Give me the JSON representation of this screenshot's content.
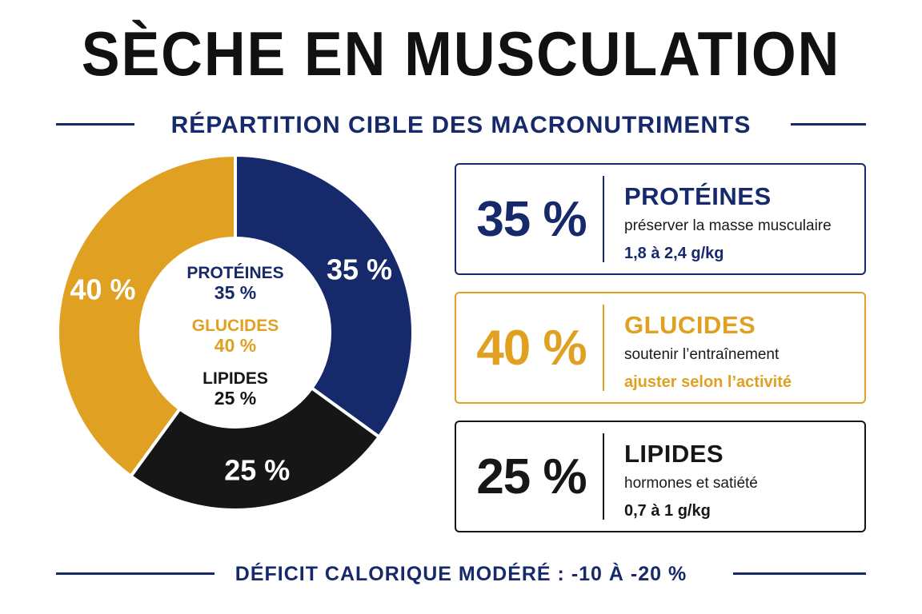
{
  "header": {
    "title": "SÈCHE EN MUSCULATION",
    "subtitle": "RÉPARTITION CIBLE DES MACRONUTRIMENTS"
  },
  "footer": {
    "text": "DÉFICIT CALORIQUE MODÉRÉ : -10 À -20 %"
  },
  "colors": {
    "navy": "#16296b",
    "gold": "#e0a021",
    "black": "#161616",
    "title": "#111111"
  },
  "chart_data": {
    "type": "pie",
    "donut": true,
    "series": [
      {
        "name": "PROTÉINES",
        "value": 35,
        "label": "35 %",
        "color": "#16296b",
        "center_label": "35 %"
      },
      {
        "name": "LIPIDES",
        "value": 25,
        "label": "25 %",
        "color": "#161616",
        "center_label": "25 %"
      },
      {
        "name": "GLUCIDES",
        "value": 40,
        "label": "40 %",
        "color": "#e0a021",
        "center_label": "40 %"
      }
    ],
    "center_order": [
      "PROTÉINES",
      "GLUCIDES",
      "LIPIDES"
    ],
    "center_colors": {
      "PROTÉINES": "#16296b",
      "GLUCIDES": "#e0a021",
      "LIPIDES": "#161616"
    }
  },
  "cards": [
    {
      "pct": "35 %",
      "name": "PROTÉINES",
      "desc": "préserver la masse musculaire",
      "detail": "1,8 à 2,4 g/kg",
      "color": "#16296b",
      "detail_color": "#16296b"
    },
    {
      "pct": "40 %",
      "name": "GLUCIDES",
      "desc": "soutenir l’entraînement",
      "detail": "ajuster selon l’activité",
      "color": "#e0a021",
      "detail_color": "#e0a021"
    },
    {
      "pct": "25 %",
      "name": "LIPIDES",
      "desc": "hormones et satiété",
      "detail": "0,7 à 1 g/kg",
      "color": "#161616",
      "detail_color": "#161616"
    }
  ]
}
